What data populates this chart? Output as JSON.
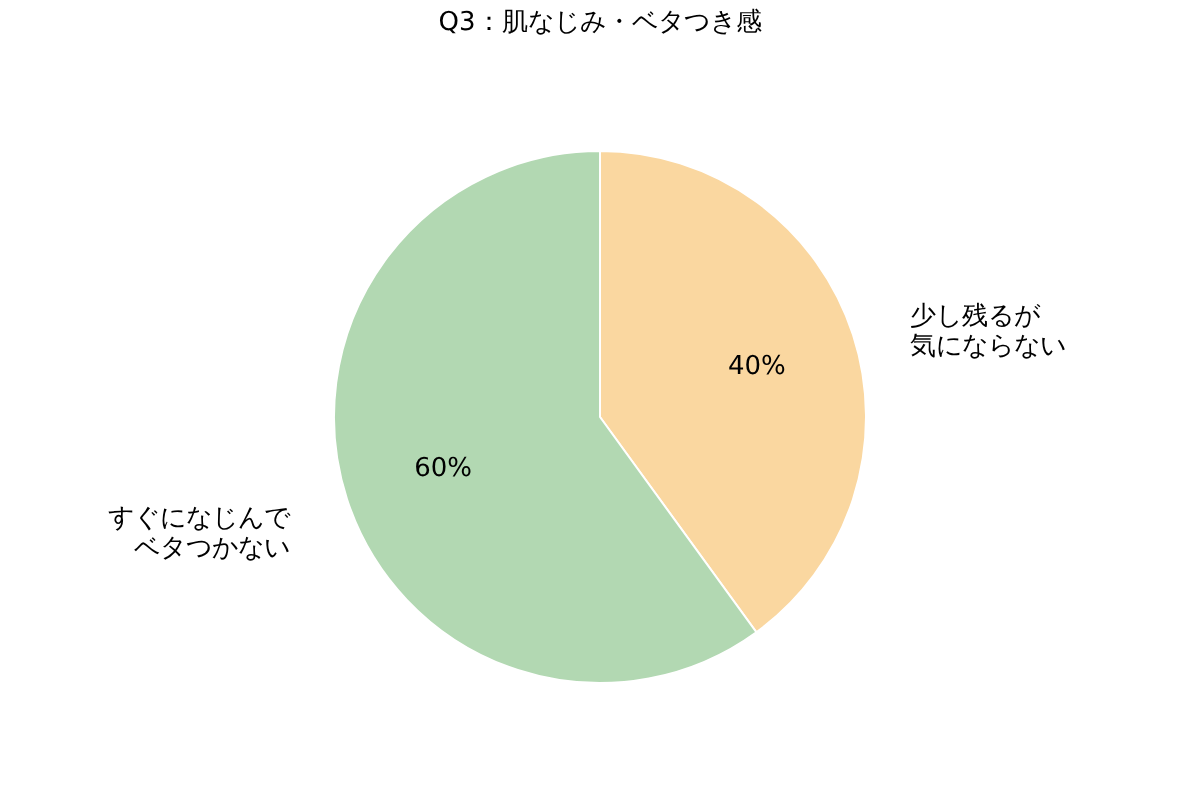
{
  "chart_data": {
    "type": "pie",
    "title": "Q3：肌なじみ・ベタつき感",
    "categories": [
      "少し残るが気にならない",
      "すぐになじんでベタつかない"
    ],
    "values": [
      40,
      60
    ],
    "colors": [
      "#fad7a0",
      "#b2d8b2"
    ],
    "value_labels": [
      "40%",
      "60%"
    ],
    "legend": false
  }
}
